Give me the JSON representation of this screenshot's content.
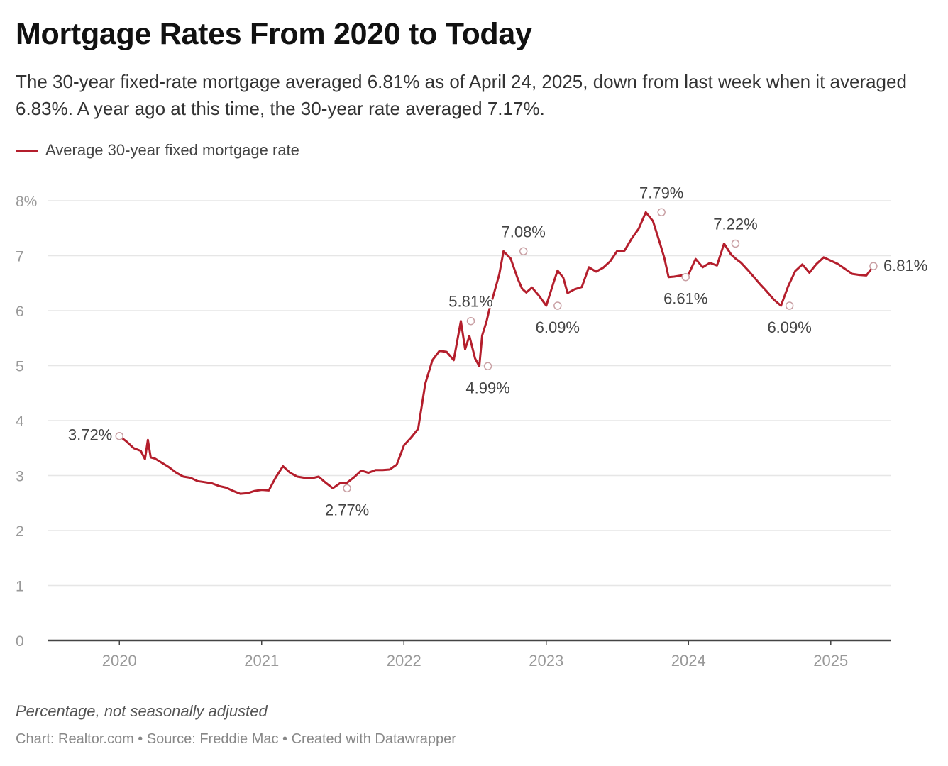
{
  "header": {
    "title": "Mortgage Rates From 2020 to Today",
    "subtitle": "The 30-year fixed-rate mortgage averaged 6.81% as of April 24, 2025, down from last week when it averaged 6.83%. A year ago at this time, the 30-year rate averaged 7.17%."
  },
  "footer": {
    "note": "Percentage, not seasonally adjusted",
    "credit": "Chart: Realtor.com • Source: Freddie Mac • Created with Datawrapper"
  },
  "colors": {
    "line": "#b41e2c",
    "grid": "#e6e6e6",
    "axis": "#444444",
    "tick": "#999999",
    "label": "#444444"
  },
  "chart_data": {
    "type": "line",
    "title": "Mortgage Rates From 2020 to Today",
    "xlabel": "",
    "ylabel": "",
    "ylim": [
      0,
      8
    ],
    "xlim": [
      2019.5,
      2025.42
    ],
    "grid": true,
    "legend_position": "top-left",
    "y_ticks": [
      {
        "value": 8,
        "label": "8%"
      },
      {
        "value": 7,
        "label": "7"
      },
      {
        "value": 6,
        "label": "6"
      },
      {
        "value": 5,
        "label": "5"
      },
      {
        "value": 4,
        "label": "4"
      },
      {
        "value": 3,
        "label": "3"
      },
      {
        "value": 2,
        "label": "2"
      },
      {
        "value": 1,
        "label": "1"
      },
      {
        "value": 0,
        "label": "0"
      }
    ],
    "x_ticks": [
      {
        "value": 2020,
        "label": "2020"
      },
      {
        "value": 2021,
        "label": "2021"
      },
      {
        "value": 2022,
        "label": "2022"
      },
      {
        "value": 2023,
        "label": "2023"
      },
      {
        "value": 2024,
        "label": "2024"
      },
      {
        "value": 2025,
        "label": "2025"
      }
    ],
    "series": [
      {
        "name": "Average 30-year fixed mortgage rate",
        "x": [
          2020.0,
          2020.05,
          2020.1,
          2020.15,
          2020.18,
          2020.2,
          2020.22,
          2020.25,
          2020.3,
          2020.35,
          2020.4,
          2020.45,
          2020.5,
          2020.55,
          2020.6,
          2020.65,
          2020.7,
          2020.75,
          2020.8,
          2020.85,
          2020.9,
          2020.95,
          2021.0,
          2021.05,
          2021.1,
          2021.15,
          2021.2,
          2021.25,
          2021.3,
          2021.35,
          2021.4,
          2021.45,
          2021.5,
          2021.55,
          2021.6,
          2021.65,
          2021.7,
          2021.75,
          2021.8,
          2021.85,
          2021.9,
          2021.95,
          2022.0,
          2022.05,
          2022.1,
          2022.15,
          2022.2,
          2022.25,
          2022.3,
          2022.35,
          2022.4,
          2022.43,
          2022.46,
          2022.5,
          2022.53,
          2022.55,
          2022.58,
          2022.6,
          2022.63,
          2022.67,
          2022.7,
          2022.75,
          2022.8,
          2022.83,
          2022.86,
          2022.9,
          2022.95,
          2023.0,
          2023.05,
          2023.08,
          2023.12,
          2023.15,
          2023.2,
          2023.25,
          2023.3,
          2023.35,
          2023.4,
          2023.45,
          2023.5,
          2023.55,
          2023.6,
          2023.65,
          2023.7,
          2023.75,
          2023.8,
          2023.83,
          2023.86,
          2023.9,
          2023.95,
          2024.0,
          2024.05,
          2024.1,
          2024.15,
          2024.2,
          2024.25,
          2024.3,
          2024.33,
          2024.37,
          2024.42,
          2024.5,
          2024.55,
          2024.6,
          2024.65,
          2024.7,
          2024.75,
          2024.8,
          2024.85,
          2024.9,
          2024.95,
          2025.0,
          2025.05,
          2025.1,
          2025.15,
          2025.2,
          2025.25,
          2025.3
        ],
        "values": [
          3.72,
          3.62,
          3.5,
          3.45,
          3.3,
          3.65,
          3.33,
          3.31,
          3.23,
          3.15,
          3.05,
          2.98,
          2.96,
          2.9,
          2.88,
          2.86,
          2.81,
          2.78,
          2.72,
          2.67,
          2.68,
          2.72,
          2.74,
          2.73,
          2.97,
          3.17,
          3.05,
          2.98,
          2.96,
          2.95,
          2.98,
          2.87,
          2.77,
          2.86,
          2.87,
          2.97,
          3.09,
          3.05,
          3.1,
          3.1,
          3.11,
          3.2,
          3.55,
          3.69,
          3.85,
          4.67,
          5.1,
          5.27,
          5.25,
          5.1,
          5.81,
          5.3,
          5.54,
          5.13,
          4.99,
          5.55,
          5.8,
          6.02,
          6.29,
          6.66,
          7.08,
          6.95,
          6.58,
          6.4,
          6.33,
          6.42,
          6.27,
          6.09,
          6.5,
          6.73,
          6.6,
          6.32,
          6.39,
          6.43,
          6.79,
          6.71,
          6.78,
          6.9,
          7.09,
          7.09,
          7.31,
          7.49,
          7.79,
          7.63,
          7.22,
          6.96,
          6.61,
          6.62,
          6.64,
          6.66,
          6.94,
          6.79,
          6.87,
          6.82,
          7.22,
          7.02,
          6.95,
          6.87,
          6.73,
          6.49,
          6.35,
          6.2,
          6.09,
          6.44,
          6.72,
          6.84,
          6.69,
          6.85,
          6.97,
          6.91,
          6.85,
          6.76,
          6.67,
          6.65,
          6.64,
          6.81
        ]
      }
    ],
    "annotations": [
      {
        "x": 2020.0,
        "y": 3.72,
        "label": "3.72%",
        "anchor": "left"
      },
      {
        "x": 2021.6,
        "y": 2.77,
        "label": "2.77%",
        "anchor": "below"
      },
      {
        "x": 2022.47,
        "y": 5.81,
        "label": "5.81%",
        "anchor": "above"
      },
      {
        "x": 2022.59,
        "y": 4.99,
        "label": "4.99%",
        "anchor": "below"
      },
      {
        "x": 2022.84,
        "y": 7.08,
        "label": "7.08%",
        "anchor": "above"
      },
      {
        "x": 2023.08,
        "y": 6.09,
        "label": "6.09%",
        "anchor": "below"
      },
      {
        "x": 2023.81,
        "y": 7.79,
        "label": "7.79%",
        "anchor": "above"
      },
      {
        "x": 2023.98,
        "y": 6.61,
        "label": "6.61%",
        "anchor": "below"
      },
      {
        "x": 2024.33,
        "y": 7.22,
        "label": "7.22%",
        "anchor": "above"
      },
      {
        "x": 2024.71,
        "y": 6.09,
        "label": "6.09%",
        "anchor": "below"
      },
      {
        "x": 2025.3,
        "y": 6.81,
        "label": "6.81%",
        "anchor": "right"
      }
    ]
  }
}
